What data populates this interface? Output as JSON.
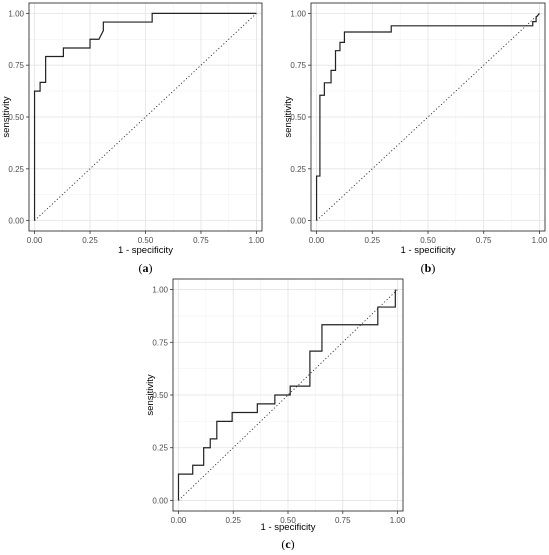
{
  "chart_data": [
    {
      "type": "line",
      "panel_label": "(a)",
      "xlabel": "1 - specificity",
      "ylabel": "sensitivity",
      "xlim": [
        -0.025,
        1.025
      ],
      "ylim": [
        -0.05,
        1.05
      ],
      "xticks": [
        "0.00",
        "0.25",
        "0.50",
        "0.75",
        "1.00"
      ],
      "yticks": [
        "0.00",
        "0.25",
        "0.50",
        "0.75",
        "1.00"
      ],
      "grid": true,
      "reference_line": "diagonal",
      "series": [
        {
          "x": [
            0,
            0,
            0.025,
            0.025,
            0.05,
            0.05,
            0.13,
            0.13,
            0.25,
            0.25,
            0.29,
            0.31,
            0.31,
            0.53,
            0.53,
            1.0
          ],
          "y": [
            0,
            0.625,
            0.625,
            0.667,
            0.667,
            0.792,
            0.792,
            0.833,
            0.833,
            0.875,
            0.875,
            0.917,
            0.958,
            0.958,
            1.0,
            1.0
          ]
        }
      ]
    },
    {
      "type": "line",
      "panel_label": "(b)",
      "xlabel": "1 - specificity",
      "ylabel": "sensitivity",
      "xlim": [
        -0.025,
        1.025
      ],
      "ylim": [
        -0.05,
        1.05
      ],
      "xticks": [
        "0.00",
        "0.25",
        "0.50",
        "0.75",
        "1.00"
      ],
      "yticks": [
        "0.00",
        "0.25",
        "0.50",
        "0.75",
        "1.00"
      ],
      "grid": true,
      "reference_line": "diagonal",
      "series": [
        {
          "x": [
            0,
            0,
            0.015,
            0.015,
            0.035,
            0.035,
            0.065,
            0.065,
            0.085,
            0.085,
            0.105,
            0.105,
            0.125,
            0.125,
            0.335,
            0.335,
            0.97,
            0.97,
            0.985,
            0.985,
            1.0
          ],
          "y": [
            0,
            0.215,
            0.215,
            0.605,
            0.605,
            0.665,
            0.665,
            0.725,
            0.725,
            0.82,
            0.82,
            0.86,
            0.86,
            0.91,
            0.91,
            0.94,
            0.94,
            0.96,
            0.96,
            0.98,
            1.0
          ]
        }
      ]
    },
    {
      "type": "line",
      "panel_label": "(c)",
      "xlabel": "1 - specificity",
      "ylabel": "sensitivity",
      "xlim": [
        -0.025,
        1.025
      ],
      "ylim": [
        -0.05,
        1.05
      ],
      "xticks": [
        "0.00",
        "0.25",
        "0.50",
        "0.75",
        "1.00"
      ],
      "yticks": [
        "0.00",
        "0.25",
        "0.50",
        "0.75",
        "1.00"
      ],
      "grid": true,
      "reference_line": "diagonal",
      "series": [
        {
          "x": [
            0,
            0,
            0.065,
            0.065,
            0.115,
            0.115,
            0.145,
            0.145,
            0.175,
            0.175,
            0.205,
            0.205,
            0.245,
            0.245,
            0.36,
            0.36,
            0.44,
            0.44,
            0.51,
            0.51,
            0.6,
            0.6,
            0.655,
            0.655,
            0.91,
            0.91,
            0.99,
            0.99
          ],
          "y": [
            0,
            0.125,
            0.125,
            0.167,
            0.167,
            0.25,
            0.25,
            0.292,
            0.292,
            0.375,
            0.375,
            0.375,
            0.375,
            0.417,
            0.417,
            0.458,
            0.458,
            0.5,
            0.5,
            0.542,
            0.542,
            0.708,
            0.708,
            0.833,
            0.833,
            0.917,
            0.917,
            1.0
          ]
        }
      ]
    }
  ]
}
